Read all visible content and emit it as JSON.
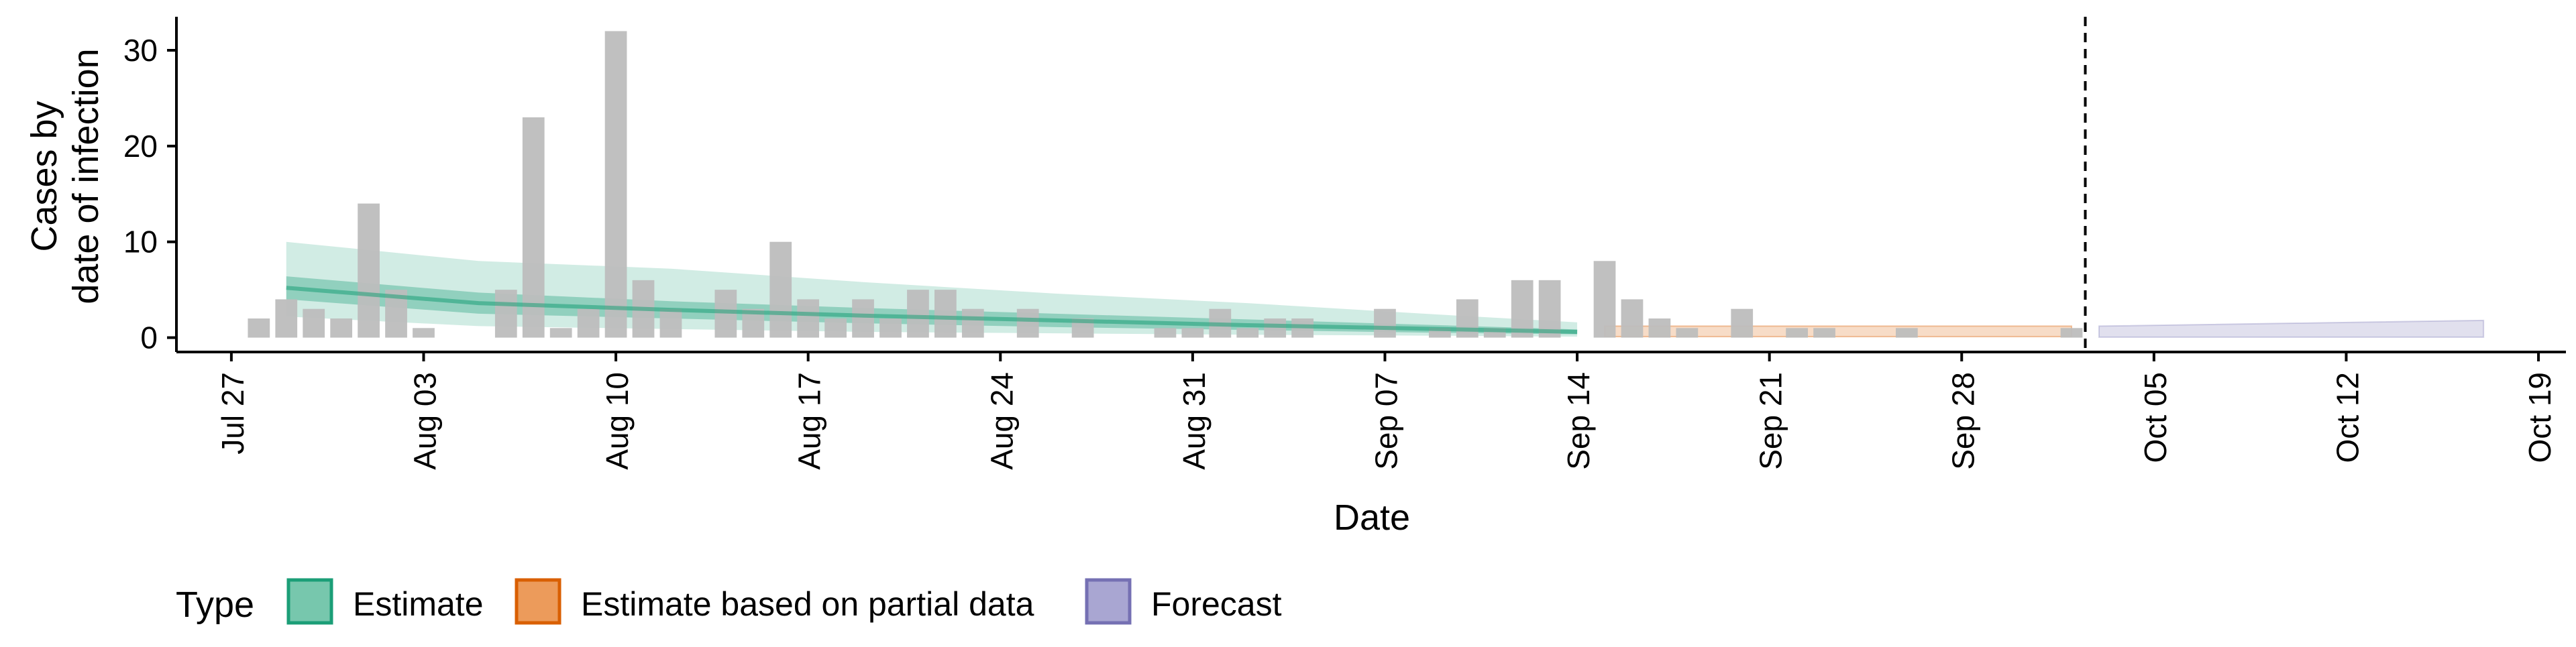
{
  "chart_data": {
    "type": "bar",
    "title": "",
    "xlabel": "Date",
    "ylabel_lines": [
      "Cases by",
      "date of infection"
    ],
    "x_ticks": [
      "Jul 27",
      "Aug 03",
      "Aug 10",
      "Aug 17",
      "Aug 24",
      "Aug 31",
      "Sep 07",
      "Sep 14",
      "Sep 21",
      "Sep 28",
      "Oct 05",
      "Oct 12",
      "Oct 19"
    ],
    "y_ticks": [
      0,
      10,
      20,
      30
    ],
    "ylim": [
      -1.5,
      33.5
    ],
    "xlim": [
      "2020-07-25",
      "2020-10-20"
    ],
    "forecast_date": "2020-10-02",
    "grid": false,
    "legend": {
      "position": "bottom",
      "title": "Type",
      "entries": [
        {
          "label": "Estimate",
          "color": "#1b9e77"
        },
        {
          "label": "Estimate based on partial data",
          "color": "#d95f02"
        },
        {
          "label": "Forecast",
          "color": "#7570b3"
        }
      ]
    },
    "bar_color": "#bdbdbd",
    "observed": {
      "dates": [
        "2020-07-28",
        "2020-07-29",
        "2020-07-30",
        "2020-07-31",
        "2020-08-01",
        "2020-08-02",
        "2020-08-03",
        "2020-08-04",
        "2020-08-05",
        "2020-08-06",
        "2020-08-07",
        "2020-08-08",
        "2020-08-09",
        "2020-08-10",
        "2020-08-11",
        "2020-08-12",
        "2020-08-13",
        "2020-08-14",
        "2020-08-15",
        "2020-08-16",
        "2020-08-17",
        "2020-08-18",
        "2020-08-19",
        "2020-08-20",
        "2020-08-21",
        "2020-08-22",
        "2020-08-23",
        "2020-08-24",
        "2020-08-25",
        "2020-08-26",
        "2020-08-27",
        "2020-08-28",
        "2020-08-29",
        "2020-08-30",
        "2020-08-31",
        "2020-09-01",
        "2020-09-02",
        "2020-09-03",
        "2020-09-04",
        "2020-09-05",
        "2020-09-06",
        "2020-09-07",
        "2020-09-08",
        "2020-09-09",
        "2020-09-10",
        "2020-09-11",
        "2020-09-12",
        "2020-09-13",
        "2020-09-14",
        "2020-09-15",
        "2020-09-16",
        "2020-09-17",
        "2020-09-18",
        "2020-09-19",
        "2020-09-20",
        "2020-09-21",
        "2020-09-22",
        "2020-09-23",
        "2020-09-24",
        "2020-09-25",
        "2020-09-26",
        "2020-09-27",
        "2020-09-28",
        "2020-09-29",
        "2020-09-30",
        "2020-10-01",
        "2020-10-02"
      ],
      "values": [
        2,
        4,
        3,
        2,
        14,
        5,
        1,
        0,
        0,
        5,
        23,
        1,
        3,
        32,
        6,
        3,
        0,
        5,
        3,
        10,
        4,
        2,
        4,
        2,
        5,
        5,
        3,
        0,
        3,
        0,
        2,
        0,
        0,
        1,
        1,
        3,
        1,
        2,
        2,
        0,
        0,
        3,
        0,
        1,
        4,
        1,
        6,
        6,
        0,
        8,
        4,
        2,
        1,
        0,
        3,
        0,
        1,
        1,
        0,
        0,
        1,
        0,
        0,
        0,
        0,
        0,
        1
      ]
    },
    "estimate": {
      "dates": [
        "2020-07-29",
        "2020-08-05",
        "2020-08-12",
        "2020-08-19",
        "2020-08-26",
        "2020-09-02",
        "2020-09-09",
        "2020-09-14"
      ],
      "median": [
        5.2,
        3.6,
        2.9,
        2.3,
        1.8,
        1.3,
        0.9,
        0.6
      ],
      "lower_90": [
        2.2,
        1.2,
        0.9,
        0.6,
        0.45,
        0.3,
        0.2,
        0.1
      ],
      "upper_90": [
        10.0,
        8.0,
        7.2,
        5.8,
        4.6,
        3.6,
        2.4,
        1.6
      ],
      "lower_50": [
        4.0,
        2.5,
        2.0,
        1.5,
        1.1,
        0.8,
        0.5,
        0.35
      ],
      "upper_50": [
        6.4,
        4.7,
        3.8,
        3.1,
        2.5,
        1.9,
        1.3,
        0.85
      ]
    },
    "estimate_partial": {
      "dates": [
        "2020-09-15",
        "2020-10-02"
      ],
      "lower_90": [
        0.1,
        0.1
      ],
      "upper_90": [
        1.2,
        1.2
      ]
    },
    "forecast": {
      "dates": [
        "2020-10-03",
        "2020-10-17"
      ],
      "lower_90": [
        0.05,
        0.05
      ],
      "upper_90": [
        1.2,
        1.8
      ]
    }
  }
}
